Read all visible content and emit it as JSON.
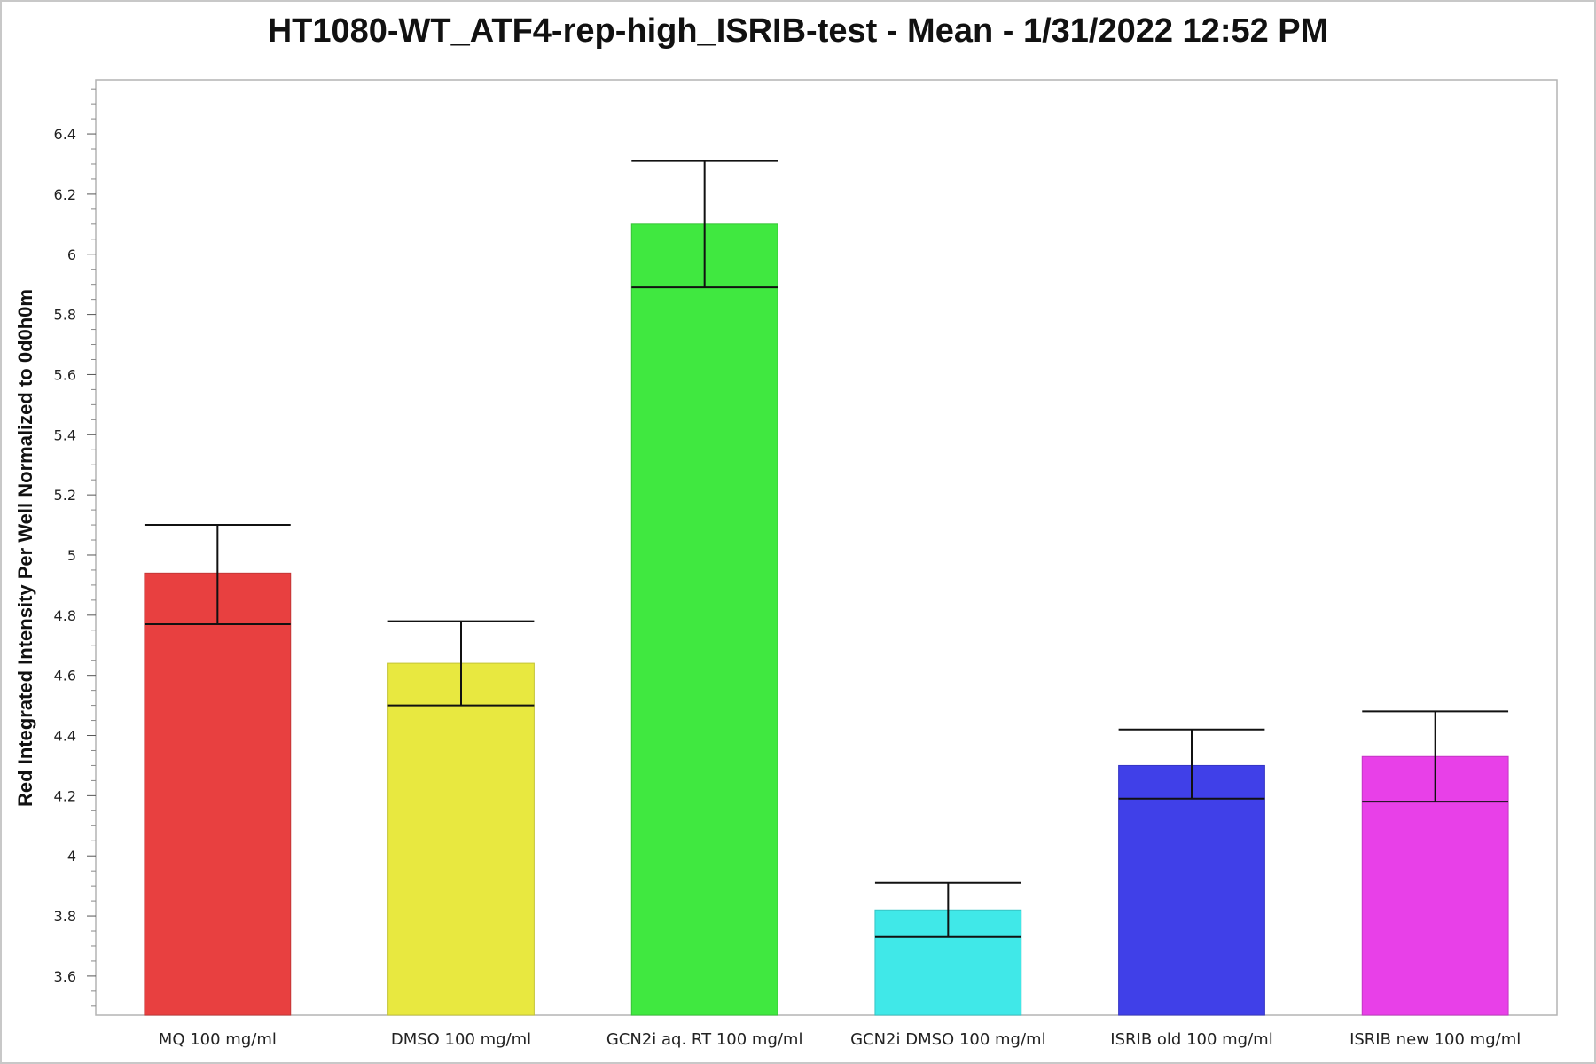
{
  "chart_data": {
    "type": "bar",
    "title": "HT1080-WT_ATF4-rep-high_ISRIB-test - Mean - 1/31/2022 12:52 PM",
    "xlabel": "",
    "ylabel": "Red Integrated Intensity Per Well Normalized to 0d0h0m",
    "ylim": [
      3.47,
      6.58
    ],
    "yticks": [
      3.6,
      3.8,
      4,
      4.2,
      4.4,
      4.6,
      4.8,
      5,
      5.2,
      5.4,
      5.6,
      5.8,
      6,
      6.2,
      6.4
    ],
    "ytick_labels": [
      "3.6",
      "3.8",
      "4",
      "4.2",
      "4.4",
      "4.6",
      "4.8",
      "5",
      "5.2",
      "5.4",
      "5.6",
      "5.8",
      "6",
      "6.2",
      "6.4"
    ],
    "grid": false,
    "categories": [
      "MQ 100 mg/ml",
      "DMSO 100 mg/ml",
      "GCN2i aq. RT 100 mg/ml",
      "GCN2i DMSO 100 mg/ml",
      "ISRIB old 100 mg/ml",
      "ISRIB new 100 mg/ml"
    ],
    "values": [
      4.94,
      4.64,
      6.1,
      3.82,
      4.3,
      4.33
    ],
    "error_low": [
      4.77,
      4.5,
      5.89,
      3.73,
      4.19,
      4.18
    ],
    "error_high": [
      5.1,
      4.78,
      6.31,
      3.91,
      4.42,
      4.48
    ],
    "colors": [
      "#e84040",
      "#e8e840",
      "#40e840",
      "#40e8e8",
      "#4040e8",
      "#e840e8"
    ],
    "bar_edge_colors": [
      "#c43636",
      "#c4c436",
      "#36c436",
      "#36c4c4",
      "#3636c4",
      "#c436c4"
    ]
  }
}
